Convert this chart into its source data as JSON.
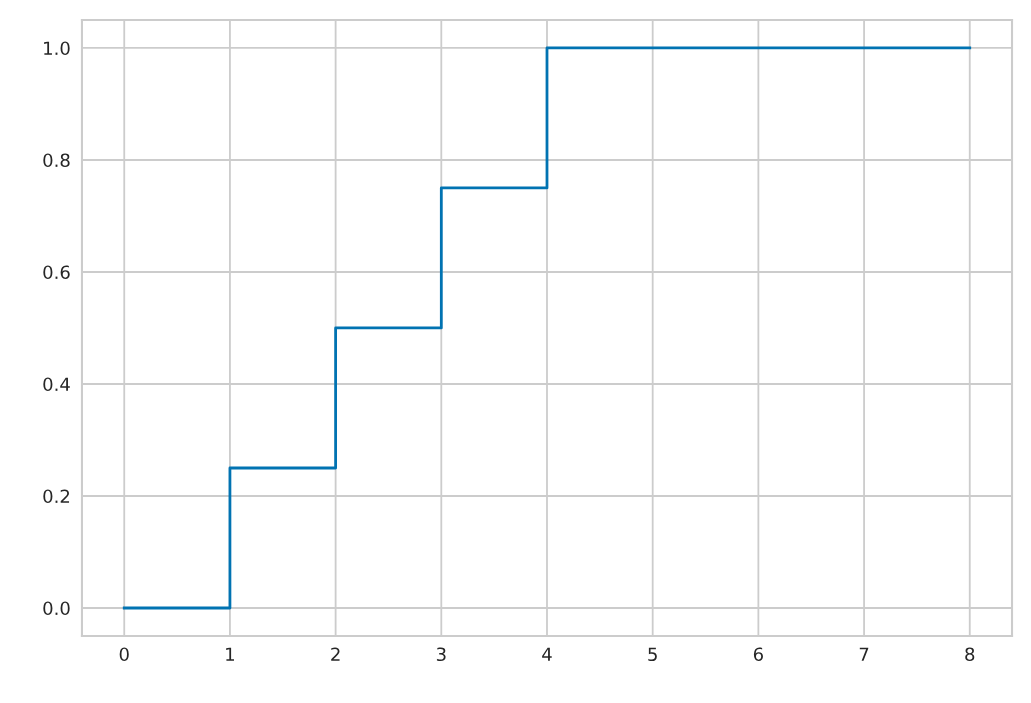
{
  "chart_data": {
    "type": "step",
    "x": [
      0,
      1,
      2,
      3,
      4,
      5,
      6,
      7,
      8
    ],
    "series": [
      {
        "color": "#0173b2",
        "values": [
          0,
          0.25,
          0.5,
          0.75,
          1,
          1,
          1,
          1,
          1
        ]
      }
    ],
    "xlim": [
      -0.4,
      8.4
    ],
    "xticks": [
      0,
      1,
      2,
      3,
      4,
      5,
      6,
      7,
      8
    ],
    "ylim": [
      -0.05,
      1.05
    ],
    "yticks": [
      {
        "value": 0,
        "label": "0.0"
      },
      {
        "value": 0.2,
        "label": "0.2"
      },
      {
        "value": 0.4,
        "label": "0.4"
      },
      {
        "value": 0.6,
        "label": "0.6"
      },
      {
        "value": 0.8,
        "label": "0.8"
      },
      {
        "value": 1,
        "label": "1.0"
      }
    ],
    "grid": true
  }
}
